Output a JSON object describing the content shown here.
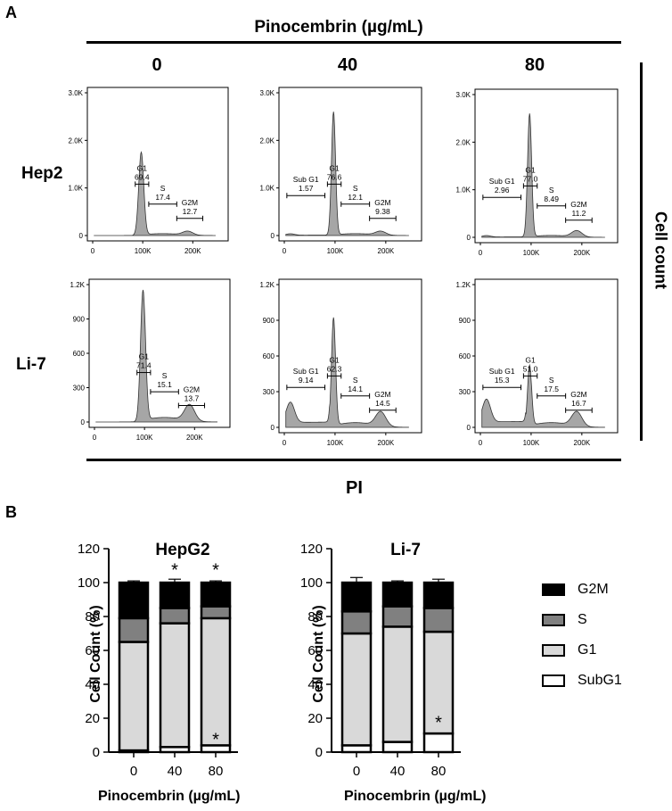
{
  "panel_a_letter": "A",
  "panel_b_letter": "B",
  "header_title": "Pinocembrin (µg/mL)",
  "concentrations": [
    "0",
    "40",
    "80"
  ],
  "row_labels": [
    "Hep2",
    "Li-7"
  ],
  "x_axis_title_a": "PI",
  "y_axis_title_a": "Cell count",
  "histograms": [
    {
      "row": "Hep2",
      "conc": "0",
      "yticks": [
        "0",
        "1.0K",
        "2.0K",
        "3.0K"
      ],
      "xticks": [
        "0",
        "100K",
        "200K"
      ],
      "ymax": 3000,
      "gates": [
        {
          "name": "G1",
          "value": "69.4"
        },
        {
          "name": "S",
          "value": "17.4"
        },
        {
          "name": "G2M",
          "value": "12.7"
        }
      ]
    },
    {
      "row": "Hep2",
      "conc": "40",
      "yticks": [
        "0",
        "1.0K",
        "2.0K",
        "3.0K"
      ],
      "xticks": [
        "0",
        "100K",
        "200K"
      ],
      "ymax": 3000,
      "gates": [
        {
          "name": "Sub G1",
          "value": "1.57"
        },
        {
          "name": "G1",
          "value": "76.6"
        },
        {
          "name": "S",
          "value": "12.1"
        },
        {
          "name": "G2M",
          "value": "9.38"
        }
      ]
    },
    {
      "row": "Hep2",
      "conc": "80",
      "yticks": [
        "0",
        "1.0K",
        "2.0K",
        "3.0K"
      ],
      "xticks": [
        "0",
        "100K",
        "200K"
      ],
      "ymax": 3000,
      "gates": [
        {
          "name": "Sub G1",
          "value": "2.96"
        },
        {
          "name": "G1",
          "value": "77.0"
        },
        {
          "name": "S",
          "value": "8.49"
        },
        {
          "name": "G2M",
          "value": "11.2"
        }
      ]
    },
    {
      "row": "Li-7",
      "conc": "0",
      "yticks": [
        "0",
        "300",
        "600",
        "900",
        "1.2K"
      ],
      "xticks": [
        "0",
        "100K",
        "200K"
      ],
      "ymax": 1200,
      "gates": [
        {
          "name": "G1",
          "value": "71.4"
        },
        {
          "name": "S",
          "value": "15.1"
        },
        {
          "name": "G2M",
          "value": "13.7"
        }
      ]
    },
    {
      "row": "Li-7",
      "conc": "40",
      "yticks": [
        "0",
        "300",
        "600",
        "900",
        "1.2K"
      ],
      "xticks": [
        "0",
        "100K",
        "200K"
      ],
      "ymax": 1200,
      "gates": [
        {
          "name": "Sub G1",
          "value": "9.14"
        },
        {
          "name": "G1",
          "value": "62.3"
        },
        {
          "name": "S",
          "value": "14.1"
        },
        {
          "name": "G2M",
          "value": "14.5"
        }
      ]
    },
    {
      "row": "Li-7",
      "conc": "80",
      "yticks": [
        "0",
        "300",
        "600",
        "900",
        "1.2K"
      ],
      "xticks": [
        "0",
        "100K",
        "200K"
      ],
      "ymax": 1200,
      "gates": [
        {
          "name": "Sub G1",
          "value": "15.3"
        },
        {
          "name": "G1",
          "value": "51.0"
        },
        {
          "name": "S",
          "value": "17.5"
        },
        {
          "name": "G2M",
          "value": "16.7"
        }
      ]
    }
  ],
  "legend": [
    {
      "label": "G2M",
      "color": "#000000"
    },
    {
      "label": "S",
      "color": "#808080"
    },
    {
      "label": "G1",
      "color": "#d9d9d9"
    },
    {
      "label": "SubG1",
      "color": "#ffffff"
    }
  ],
  "chart_data": [
    {
      "type": "bar",
      "stacked": true,
      "title": "HepG2",
      "xlabel": "Pinocembrin (µg/mL)",
      "ylabel": "Cell Count (%)",
      "categories": [
        "0",
        "40",
        "80"
      ],
      "ylim": [
        0,
        120
      ],
      "yticks": [
        "0",
        "20",
        "40",
        "60",
        "80",
        "100",
        "120"
      ],
      "series": [
        {
          "name": "SubG1",
          "values": [
            1,
            3,
            4
          ],
          "errors": [
            0,
            2,
            2
          ]
        },
        {
          "name": "G1",
          "values": [
            64,
            73,
            75
          ],
          "errors": [
            1,
            5,
            2
          ]
        },
        {
          "name": "S",
          "values": [
            14,
            9,
            7
          ],
          "errors": [
            0,
            0,
            0
          ]
        },
        {
          "name": "G2M",
          "values": [
            21,
            15,
            14
          ],
          "errors": [
            1,
            2,
            1
          ]
        }
      ],
      "significance": [
        "",
        "*",
        "*"
      ],
      "significance_subg1": [
        "",
        "",
        "*"
      ]
    },
    {
      "type": "bar",
      "stacked": true,
      "title": "Li-7",
      "xlabel": "Pinocembrin (µg/mL)",
      "ylabel": "Cell Count (%)",
      "categories": [
        "0",
        "40",
        "80"
      ],
      "ylim": [
        0,
        120
      ],
      "yticks": [
        "0",
        "20",
        "40",
        "60",
        "80",
        "100",
        "120"
      ],
      "series": [
        {
          "name": "SubG1",
          "values": [
            4,
            6,
            11
          ],
          "errors": [
            2,
            4,
            7
          ]
        },
        {
          "name": "G1",
          "values": [
            66,
            68,
            60
          ],
          "errors": [
            5,
            5,
            10
          ]
        },
        {
          "name": "S",
          "values": [
            13,
            12,
            14
          ],
          "errors": [
            0,
            0,
            0
          ]
        },
        {
          "name": "G2M",
          "values": [
            17,
            14,
            15
          ],
          "errors": [
            3,
            1,
            2
          ]
        }
      ],
      "significance": [
        "",
        "",
        ""
      ],
      "significance_subg1": [
        "",
        "",
        "*"
      ]
    }
  ]
}
